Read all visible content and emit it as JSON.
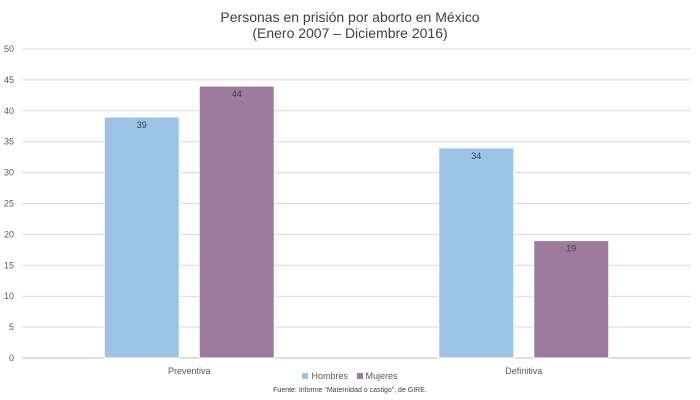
{
  "chart_data": {
    "type": "bar",
    "title": "Personas en prisión por aborto en México",
    "subtitle": "(Enero 2007 – Diciembre 2016)",
    "categories": [
      "Preventiva",
      "Definitiva"
    ],
    "series": [
      {
        "name": "Hombres",
        "values": [
          39,
          34
        ],
        "color": "#9dc3e6"
      },
      {
        "name": "Mujeres",
        "values": [
          44,
          19
        ],
        "color": "#9e7a9c"
      }
    ],
    "ylim": [
      0,
      50
    ],
    "yticks": [
      0,
      5,
      10,
      15,
      20,
      25,
      30,
      35,
      40,
      45,
      50
    ],
    "grid": true,
    "legend_position": "bottom",
    "data_labels": true,
    "source": "Fuente: Informe “Maternidad o castigo”, de GIRE."
  }
}
